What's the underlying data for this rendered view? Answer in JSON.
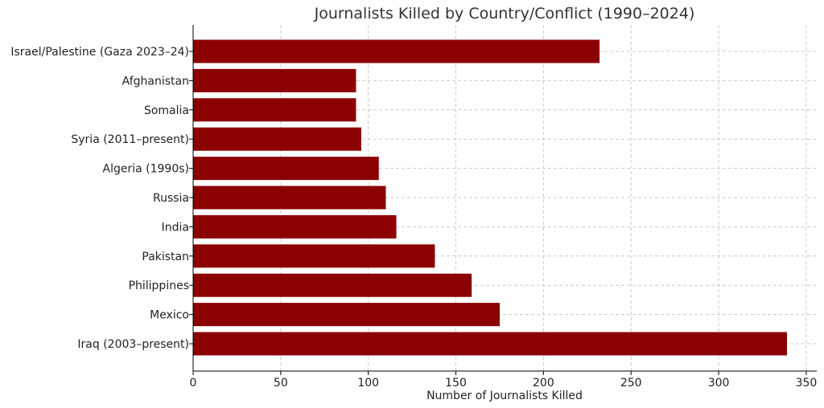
{
  "chart_data": {
    "type": "bar",
    "orientation": "horizontal",
    "title": "Journalists Killed by Country/Conflict (1990–2024)",
    "xlabel": "Number of Journalists Killed",
    "ylabel": "",
    "xlim": [
      0,
      356
    ],
    "xticks": [
      0,
      50,
      100,
      150,
      200,
      250,
      300,
      350
    ],
    "grid": true,
    "bar_color": "#8b0000",
    "categories": [
      "Iraq (2003–present)",
      "Mexico",
      "Philippines",
      "Pakistan",
      "India",
      "Russia",
      "Algeria (1990s)",
      "Syria (2011–present)",
      "Somalia",
      "Afghanistan",
      "Israel/Palestine (Gaza 2023–24)"
    ],
    "values": [
      339,
      175,
      159,
      138,
      116,
      110,
      106,
      96,
      93,
      93,
      232
    ]
  }
}
